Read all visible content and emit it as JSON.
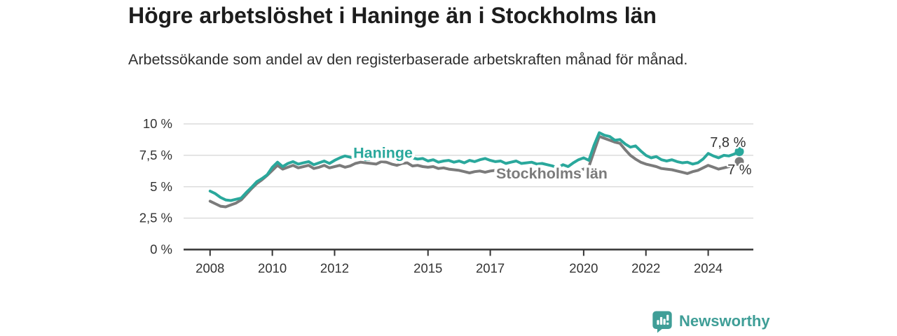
{
  "header": {
    "title": "Högre arbetslöshet i Haninge än i Stockholms län",
    "subtitle": "Arbetssökande som andel av den registerbaserade arbetskraften månad för månad."
  },
  "footer": {
    "brand": "Newsworthy",
    "logo_icon": "bar-chart-speech-bubble-icon"
  },
  "colors": {
    "haninge": "#2aa89c",
    "stockholm": "#7b7b7b",
    "axis": "#333333",
    "grid": "#dcdcdc",
    "title_text": "#1d1d1d",
    "value_label_text": "#333333",
    "brand": "#3f9e97"
  },
  "chart_data": {
    "type": "line",
    "title": "Högre arbetslöshet i Haninge än i Stockholms län",
    "subtitle": "Arbetssökande som andel av den registerbaserade arbetskraften månad för månad.",
    "xlabel": "",
    "ylabel": "",
    "grid": "horizontal",
    "legend": "inline-series-labels",
    "x_axis": {
      "min": 2007.15,
      "max": 2025.45,
      "ticks": [
        {
          "value": 2008,
          "label": "2008"
        },
        {
          "value": 2010,
          "label": "2010"
        },
        {
          "value": 2012,
          "label": "2012"
        },
        {
          "value": 2015,
          "label": "2015"
        },
        {
          "value": 2017,
          "label": "2017"
        },
        {
          "value": 2020,
          "label": "2020"
        },
        {
          "value": 2022,
          "label": "2022"
        },
        {
          "value": 2024,
          "label": "2024"
        }
      ]
    },
    "y_axis": {
      "min": 0,
      "max": 10,
      "ticks": [
        {
          "value": 10,
          "label": "10 %"
        },
        {
          "value": 7.5,
          "label": "7,5 %"
        },
        {
          "value": 5,
          "label": "5 %"
        },
        {
          "value": 2.5,
          "label": "2,5 %"
        },
        {
          "value": 0,
          "label": "0 %"
        }
      ]
    },
    "series": [
      {
        "name": "Stockholms län",
        "slug": "stockholms-lan",
        "color": "#7b7b7b",
        "start": 2008,
        "points_per_year": 6,
        "values": [
          3.85,
          3.65,
          3.45,
          3.4,
          3.55,
          3.7,
          3.95,
          4.4,
          4.85,
          5.25,
          5.55,
          5.9,
          6.3,
          6.7,
          6.4,
          6.55,
          6.7,
          6.5,
          6.6,
          6.7,
          6.45,
          6.55,
          6.7,
          6.5,
          6.6,
          6.7,
          6.55,
          6.65,
          6.85,
          6.95,
          6.9,
          6.85,
          6.8,
          7.0,
          6.95,
          6.8,
          6.7,
          6.85,
          6.9,
          6.65,
          6.7,
          6.6,
          6.55,
          6.6,
          6.45,
          6.5,
          6.4,
          6.35,
          6.3,
          6.2,
          6.1,
          6.2,
          6.25,
          6.15,
          6.25,
          6.3,
          6.2,
          6.1,
          6.15,
          6.25,
          6.1,
          6.15,
          6.2,
          6.05,
          6.1,
          6.0,
          5.95,
          5.85,
          6.0,
          5.95,
          6.1,
          6.25,
          6.4,
          6.6,
          7.8,
          9.0,
          8.85,
          8.7,
          8.55,
          8.45,
          7.95,
          7.5,
          7.2,
          6.95,
          6.8,
          6.7,
          6.6,
          6.45,
          6.4,
          6.35,
          6.25,
          6.15,
          6.05,
          6.2,
          6.3,
          6.5,
          6.7,
          6.55,
          6.4,
          6.5,
          6.6,
          6.65,
          7.0
        ],
        "inline_label": {
          "text": "Stockholms län",
          "x": 2017.19,
          "y": 5.65
        },
        "end_label": {
          "text": "7 %",
          "x": 2024.62,
          "y": 5.99
        },
        "end_value": "7 %"
      },
      {
        "name": "Haninge",
        "slug": "haninge",
        "color": "#2aa89c",
        "start": 2008,
        "points_per_year": 6,
        "values": [
          4.65,
          4.45,
          4.15,
          3.95,
          3.9,
          4.0,
          4.1,
          4.55,
          4.95,
          5.4,
          5.65,
          5.95,
          6.55,
          6.95,
          6.6,
          6.85,
          7.0,
          6.8,
          6.9,
          7.0,
          6.75,
          6.9,
          7.05,
          6.85,
          7.1,
          7.3,
          7.45,
          7.35,
          7.25,
          7.3,
          7.15,
          7.2,
          7.3,
          7.25,
          7.3,
          7.2,
          7.15,
          7.25,
          7.35,
          7.3,
          7.2,
          7.25,
          7.05,
          7.15,
          6.95,
          7.05,
          7.1,
          6.95,
          7.05,
          6.9,
          7.1,
          7.0,
          7.15,
          7.25,
          7.1,
          7.0,
          7.05,
          6.85,
          6.95,
          7.05,
          6.85,
          6.9,
          6.95,
          6.8,
          6.85,
          6.75,
          6.65,
          6.5,
          6.75,
          6.6,
          6.9,
          7.15,
          7.3,
          7.1,
          8.3,
          9.3,
          9.1,
          9.0,
          8.7,
          8.75,
          8.4,
          8.15,
          8.25,
          7.85,
          7.5,
          7.3,
          7.4,
          7.15,
          7.05,
          7.15,
          7.0,
          6.9,
          6.95,
          6.8,
          6.9,
          7.2,
          7.65,
          7.45,
          7.3,
          7.5,
          7.45,
          7.6,
          7.8
        ],
        "inline_label": {
          "text": "Haninge",
          "x": 2012.6,
          "y": 7.3
        },
        "end_label": {
          "text": "7,8 %",
          "x": 2024.06,
          "y": 8.16
        },
        "end_value": "7,8 %"
      }
    ]
  }
}
